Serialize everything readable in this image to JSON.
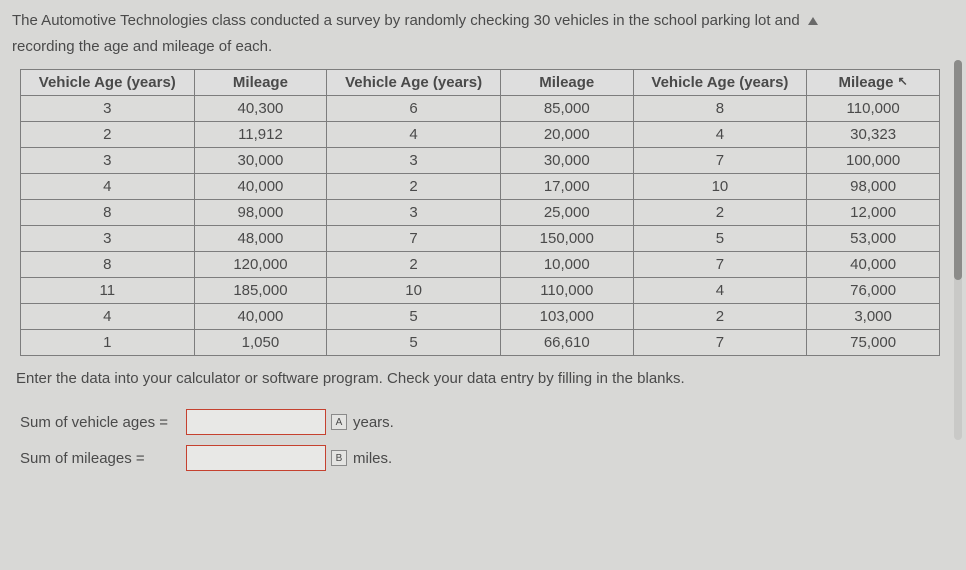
{
  "intro": {
    "line1": "The Automotive Technologies class conducted a survey by randomly checking 30 vehicles in the school parking lot and",
    "line2": "recording the age and mileage of each."
  },
  "table": {
    "headers": [
      "Vehicle Age (years)",
      "Mileage",
      "Vehicle Age (years)",
      "Mileage",
      "Vehicle Age (years)",
      "Mileage"
    ],
    "rows": [
      [
        "3",
        "40,300",
        "6",
        "85,000",
        "8",
        "110,000"
      ],
      [
        "2",
        "11,912",
        "4",
        "20,000",
        "4",
        "30,323"
      ],
      [
        "3",
        "30,000",
        "3",
        "30,000",
        "7",
        "100,000"
      ],
      [
        "4",
        "40,000",
        "2",
        "17,000",
        "10",
        "98,000"
      ],
      [
        "8",
        "98,000",
        "3",
        "25,000",
        "2",
        "12,000"
      ],
      [
        "3",
        "48,000",
        "7",
        "150,000",
        "5",
        "53,000"
      ],
      [
        "8",
        "120,000",
        "2",
        "10,000",
        "7",
        "40,000"
      ],
      [
        "11",
        "185,000",
        "10",
        "110,000",
        "4",
        "76,000"
      ],
      [
        "4",
        "40,000",
        "5",
        "103,000",
        "2",
        "3,000"
      ],
      [
        "1",
        "1,050",
        "5",
        "66,610",
        "7",
        "75,000"
      ]
    ],
    "col_widths": [
      "17%",
      "13%",
      "17%",
      "13%",
      "17%",
      "13%"
    ]
  },
  "after_table": "Enter the data into your calculator or software program. Check your data entry by filling in the blanks.",
  "answers": {
    "row1": {
      "label": "Sum of vehicle ages =",
      "badge": "A",
      "unit": "years."
    },
    "row2": {
      "label": "Sum of mileages =",
      "badge": "B",
      "unit": "miles."
    }
  },
  "colors": {
    "background": "#d8d8d6",
    "text": "#4a4a4a",
    "border": "#7d7d7d",
    "input_border": "#c5412f"
  }
}
